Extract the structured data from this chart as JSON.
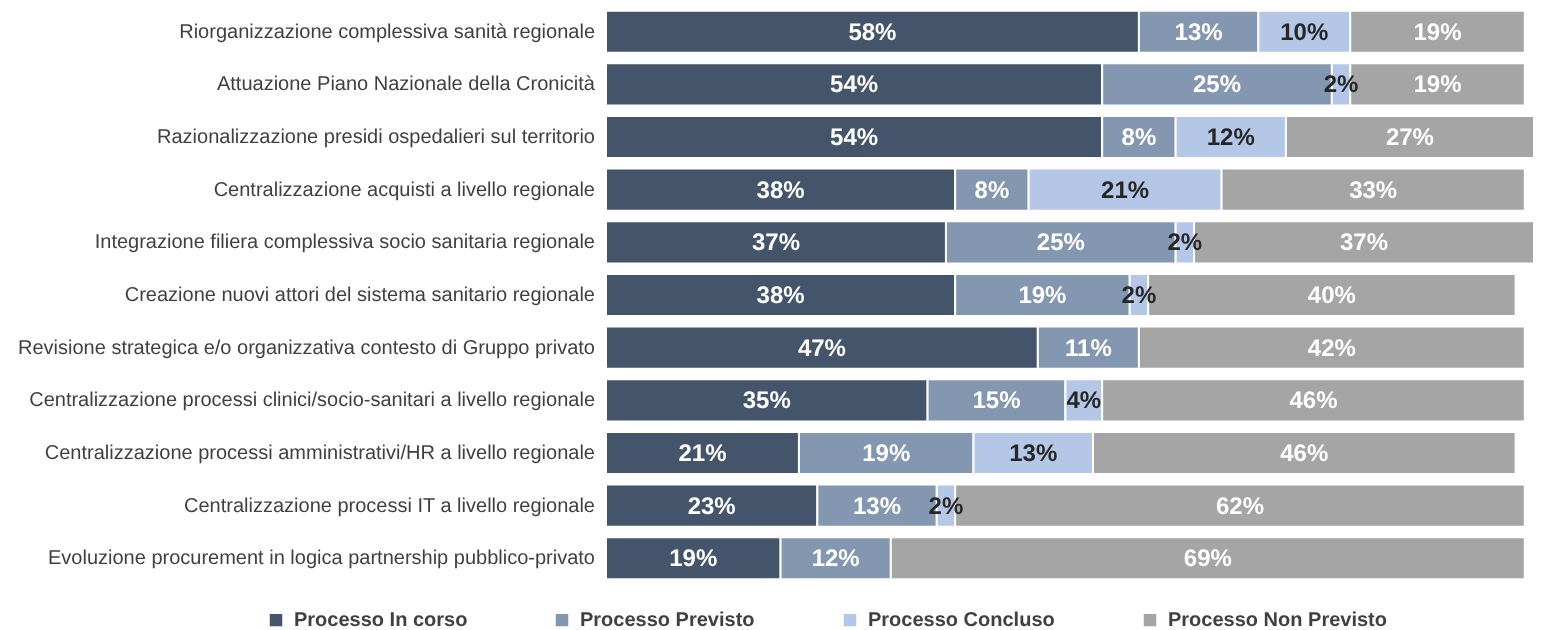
{
  "chart_data": {
    "type": "bar",
    "orientation": "horizontal",
    "stacked": true,
    "legend": "bottom",
    "categories": [
      "Riorganizzazione complessiva sanità regionale",
      "Attuazione Piano Nazionale della Cronicità",
      "Razionalizzazione presidi ospedalieri sul territorio",
      "Centralizzazione acquisti a livello regionale",
      "Integrazione filiera complessiva socio sanitaria regionale",
      "Creazione nuovi attori del sistema sanitario regionale",
      "Revisione strategica e/o organizzativa contesto di Gruppo privato",
      "Centralizzazione processi clinici/socio-sanitari a livello regionale",
      "Centralizzazione processi amministrativi/HR a livello regionale",
      "Centralizzazione processi IT a livello regionale",
      "Evoluzione procurement in logica partnership pubblico-privato"
    ],
    "series": [
      {
        "name": "Processo In corso",
        "color": "#44546a",
        "values": [
          58,
          54,
          54,
          38,
          37,
          38,
          47,
          35,
          21,
          23,
          19
        ],
        "value_labels": [
          "58%",
          "54%",
          "54%",
          "38%",
          "37%",
          "38%",
          "47%",
          "35%",
          "21%",
          "23%",
          "19%"
        ]
      },
      {
        "name": "Processo Previsto",
        "color": "#8497b0",
        "values": [
          13,
          25,
          8,
          8,
          25,
          19,
          11,
          15,
          19,
          13,
          12
        ],
        "value_labels": [
          "13%",
          "25%",
          "8%",
          "8%",
          "25%",
          "19%",
          "11%",
          "15%",
          "19%",
          "13%",
          "12%"
        ]
      },
      {
        "name": "Processo Concluso",
        "color": "#b4c7e7",
        "values": [
          10,
          2,
          12,
          21,
          2,
          2,
          null,
          4,
          13,
          2,
          null
        ],
        "value_labels": [
          "10%",
          "2%",
          "12%",
          "21%",
          "2%",
          "2%",
          null,
          "4%",
          "13%",
          "2%",
          null
        ]
      },
      {
        "name": "Processo Non Previsto",
        "color": "#a5a5a5",
        "values": [
          19,
          19,
          27,
          33,
          37,
          40,
          42,
          46,
          46,
          62,
          69
        ],
        "value_labels": [
          "19%",
          "19%",
          "27%",
          "33%",
          "37%",
          "40%",
          "42%",
          "46%",
          "46%",
          "62%",
          "69%"
        ]
      }
    ]
  }
}
